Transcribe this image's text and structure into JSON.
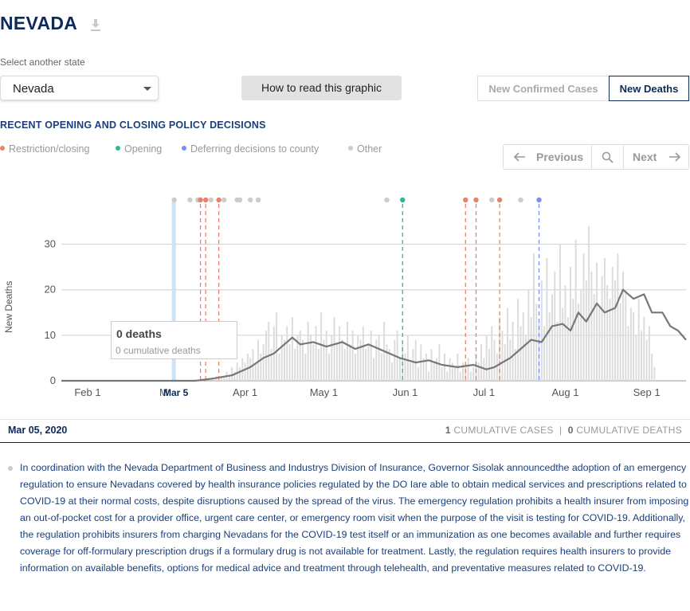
{
  "header": {
    "state_name": "NEVADA",
    "download_icon": "download-icon"
  },
  "state_select": {
    "label": "Select another state",
    "value": "Nevada"
  },
  "how_button": {
    "label": "How to read this graphic"
  },
  "metric_toggle": {
    "cases_label": "New Confirmed Cases",
    "deaths_label": "New Deaths",
    "active": "deaths"
  },
  "policy": {
    "heading": "RECENT OPENING AND CLOSING POLICY DECISIONS",
    "legend": [
      {
        "label": "Restriction/closing",
        "color": "#e8836a"
      },
      {
        "label": "Opening",
        "color": "#2bb89a"
      },
      {
        "label": "Deferring decisions to county",
        "color": "#7b8ff0"
      },
      {
        "label": "Other",
        "color": "#cccccc"
      }
    ]
  },
  "pager": {
    "prev_label": "Previous",
    "next_label": "Next",
    "search_icon": "search-icon"
  },
  "chart_data": {
    "type": "bar",
    "ylabel": "New Deaths",
    "ylim": [
      0,
      35
    ],
    "y_ticks": [
      0,
      10,
      20,
      30
    ],
    "x_start": "2020-01-22",
    "x_end": "2020-09-16",
    "x_ticks": [
      {
        "label": "Feb 1",
        "date": "2020-02-01"
      },
      {
        "label": "M",
        "date": "2020-03-01"
      },
      {
        "label": "Apr 1",
        "date": "2020-04-01"
      },
      {
        "label": "May 1",
        "date": "2020-05-01"
      },
      {
        "label": "Jun 1",
        "date": "2020-06-01"
      },
      {
        "label": "Jul 1",
        "date": "2020-07-01"
      },
      {
        "label": "Aug 1",
        "date": "2020-08-01"
      },
      {
        "label": "Sep 1",
        "date": "2020-09-01"
      }
    ],
    "highlight": {
      "label": "Mar 5",
      "date": "2020-03-05"
    },
    "daily_values": [
      0,
      0,
      0,
      0,
      0,
      0,
      0,
      0,
      0,
      0,
      0,
      0,
      0,
      0,
      0,
      0,
      0,
      0,
      0,
      0,
      0,
      0,
      0,
      0,
      0,
      0,
      0,
      0,
      0,
      0,
      0,
      0,
      0,
      0,
      0,
      0,
      0,
      0,
      0,
      0,
      0,
      0,
      0,
      0,
      0,
      0,
      0,
      0,
      0,
      0,
      0,
      0,
      0,
      0,
      0,
      0,
      0,
      0,
      0,
      1,
      0,
      1,
      1,
      2,
      1,
      3,
      2,
      4,
      3,
      5,
      4,
      6,
      5,
      7,
      4,
      9,
      6,
      8,
      11,
      13,
      7,
      12,
      15,
      6,
      10,
      9,
      12,
      8,
      14,
      7,
      10,
      11,
      9,
      6,
      13,
      10,
      8,
      12,
      7,
      15,
      9,
      11,
      6,
      10,
      14,
      8,
      12,
      9,
      7,
      13,
      8,
      11,
      6,
      10,
      9,
      12,
      7,
      8,
      11,
      5,
      9,
      10,
      6,
      13,
      8,
      7,
      4,
      9,
      11,
      5,
      8,
      6,
      10,
      4,
      7,
      9,
      3,
      8,
      5,
      6,
      2,
      7,
      4,
      5,
      8,
      3,
      6,
      2,
      5,
      4,
      3,
      6,
      2,
      4,
      3,
      5,
      2,
      3,
      6,
      4,
      8,
      5,
      10,
      7,
      12,
      9,
      6,
      14,
      11,
      8,
      16,
      9,
      13,
      7,
      18,
      12,
      15,
      10,
      20,
      14,
      28,
      17,
      13,
      22,
      12,
      27,
      15,
      19,
      24,
      13,
      30,
      16,
      21,
      14,
      25,
      18,
      31,
      17,
      20,
      28,
      22,
      34,
      24,
      19,
      26,
      16,
      23,
      27,
      21,
      18,
      25,
      22,
      28,
      17,
      24,
      20,
      12,
      16,
      15,
      10,
      18,
      11,
      14,
      9,
      12,
      6,
      3
    ],
    "avg_series": [
      {
        "date": "2020-01-22",
        "value": 0
      },
      {
        "date": "2020-03-13",
        "value": 0
      },
      {
        "date": "2020-03-20",
        "value": 0.5
      },
      {
        "date": "2020-03-27",
        "value": 1.2
      },
      {
        "date": "2020-04-03",
        "value": 3
      },
      {
        "date": "2020-04-08",
        "value": 5
      },
      {
        "date": "2020-04-12",
        "value": 6
      },
      {
        "date": "2020-04-15",
        "value": 7.5
      },
      {
        "date": "2020-04-19",
        "value": 9.5
      },
      {
        "date": "2020-04-22",
        "value": 8
      },
      {
        "date": "2020-04-27",
        "value": 8.5
      },
      {
        "date": "2020-05-02",
        "value": 7.5
      },
      {
        "date": "2020-05-08",
        "value": 8.5
      },
      {
        "date": "2020-05-13",
        "value": 7
      },
      {
        "date": "2020-05-18",
        "value": 8
      },
      {
        "date": "2020-05-24",
        "value": 6.5
      },
      {
        "date": "2020-05-30",
        "value": 5
      },
      {
        "date": "2020-06-05",
        "value": 4
      },
      {
        "date": "2020-06-10",
        "value": 4.5
      },
      {
        "date": "2020-06-15",
        "value": 3.5
      },
      {
        "date": "2020-06-21",
        "value": 3
      },
      {
        "date": "2020-06-27",
        "value": 3.5
      },
      {
        "date": "2020-07-02",
        "value": 2.5
      },
      {
        "date": "2020-07-05",
        "value": 3
      },
      {
        "date": "2020-07-08",
        "value": 4
      },
      {
        "date": "2020-07-11",
        "value": 5
      },
      {
        "date": "2020-07-15",
        "value": 7
      },
      {
        "date": "2020-07-19",
        "value": 9
      },
      {
        "date": "2020-07-23",
        "value": 8.5
      },
      {
        "date": "2020-07-27",
        "value": 12
      },
      {
        "date": "2020-07-31",
        "value": 12.5
      },
      {
        "date": "2020-08-03",
        "value": 11
      },
      {
        "date": "2020-08-06",
        "value": 15
      },
      {
        "date": "2020-08-09",
        "value": 13
      },
      {
        "date": "2020-08-13",
        "value": 17
      },
      {
        "date": "2020-08-16",
        "value": 15
      },
      {
        "date": "2020-08-20",
        "value": 16
      },
      {
        "date": "2020-08-23",
        "value": 20
      },
      {
        "date": "2020-08-27",
        "value": 18
      },
      {
        "date": "2020-08-31",
        "value": 19
      },
      {
        "date": "2020-09-03",
        "value": 15
      },
      {
        "date": "2020-09-07",
        "value": 15
      },
      {
        "date": "2020-09-10",
        "value": 12
      },
      {
        "date": "2020-09-13",
        "value": 11
      },
      {
        "date": "2020-09-16",
        "value": 9
      }
    ],
    "policy_events": [
      {
        "date": "2020-03-05",
        "type": "other"
      },
      {
        "date": "2020-03-11",
        "type": "other"
      },
      {
        "date": "2020-03-14",
        "type": "other"
      },
      {
        "date": "2020-03-15",
        "type": "restriction"
      },
      {
        "date": "2020-03-17",
        "type": "restriction"
      },
      {
        "date": "2020-03-19",
        "type": "other"
      },
      {
        "date": "2020-03-22",
        "type": "restriction"
      },
      {
        "date": "2020-03-24",
        "type": "other"
      },
      {
        "date": "2020-03-29",
        "type": "other"
      },
      {
        "date": "2020-03-30",
        "type": "other"
      },
      {
        "date": "2020-04-03",
        "type": "other"
      },
      {
        "date": "2020-04-06",
        "type": "other"
      },
      {
        "date": "2020-05-25",
        "type": "other"
      },
      {
        "date": "2020-05-31",
        "type": "opening"
      },
      {
        "date": "2020-06-24",
        "type": "restriction"
      },
      {
        "date": "2020-06-28",
        "type": "restriction"
      },
      {
        "date": "2020-07-04",
        "type": "other"
      },
      {
        "date": "2020-07-07",
        "type": "restriction"
      },
      {
        "date": "2020-07-15",
        "type": "other"
      },
      {
        "date": "2020-07-22",
        "type": "deferring"
      }
    ]
  },
  "tooltip": {
    "title": "0 deaths",
    "subtitle": "0 cumulative deaths"
  },
  "info_bar": {
    "date": "Mar 05, 2020",
    "cases_count": "1",
    "cases_label": "CUMULATIVE CASES",
    "separator": "|",
    "deaths_count": "0",
    "deaths_label": "CUMULATIVE DEATHS"
  },
  "description": "In coordination with the Nevada Department of Business and Industrys Division of Insurance, Governor Sisolak announcedthe adoption of an emergency regulation to ensure Nevadans covered by health insurance policies regulated by the DO Iare able to obtain medical services and prescriptions related to COVID-19 at their normal costs, despite disruptions caused by the spread of the virus. The emergency regulation prohibits a health insurer from imposing an out-of-pocket cost for a provider office, urgent care center, or emergency room visit when the purpose of the visit is testing for COVID-19. Additionally, the regulation prohibits insurers from charging Nevadans for the COVID-19 test itself or an immunization as one becomes available and further requires coverage for off-formulary prescription drugs if a formulary drug is not available for treatment. Lastly, the regulation requires health insurers to provide information on available benefits, options for medical advice and treatment through telehealth, and preventative measures related to COVID-19.",
  "colors": {
    "navy": "#0d2a5c",
    "restriction": "#e8836a",
    "opening": "#2bb89a",
    "deferring": "#7b8ff0",
    "other": "#cccccc",
    "bar": "#dcdcdc",
    "line": "#777777",
    "highlight": "#cfe3f5"
  }
}
